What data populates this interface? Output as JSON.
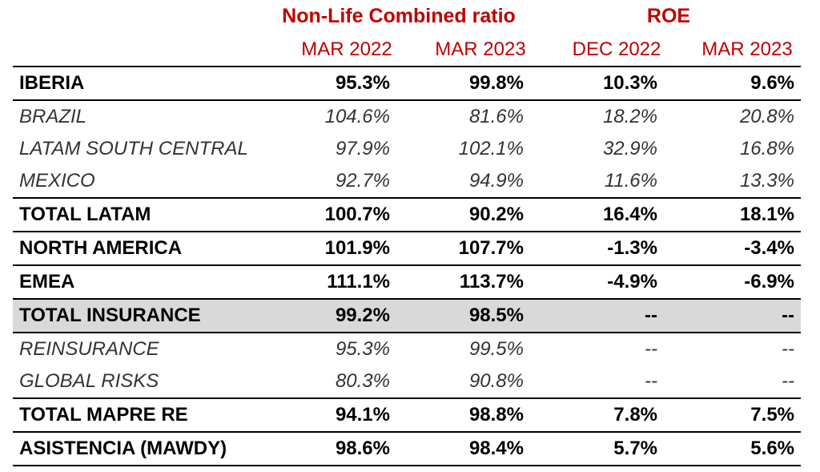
{
  "headers": {
    "group_combined": "Non-Life Combined ratio",
    "group_roe": "ROE",
    "columns": [
      "MAR 2022",
      "MAR 2023",
      "DEC 2022",
      "MAR 2023"
    ]
  },
  "rows": [
    {
      "label": "IBERIA",
      "values": [
        "95.3%",
        "99.8%",
        "10.3%",
        "9.6%"
      ]
    },
    {
      "label": "BRAZIL",
      "values": [
        "104.6%",
        "81.6%",
        "18.2%",
        "20.8%"
      ]
    },
    {
      "label": "LATAM SOUTH CENTRAL",
      "values": [
        "97.9%",
        "102.1%",
        "32.9%",
        "16.8%"
      ]
    },
    {
      "label": "MEXICO",
      "values": [
        "92.7%",
        "94.9%",
        "11.6%",
        "13.3%"
      ]
    },
    {
      "label": "TOTAL LATAM",
      "values": [
        "100.7%",
        "90.2%",
        "16.4%",
        "18.1%"
      ]
    },
    {
      "label": "NORTH AMERICA",
      "values": [
        "101.9%",
        "107.7%",
        "-1.3%",
        "-3.4%"
      ]
    },
    {
      "label": "EMEA",
      "values": [
        "111.1%",
        "113.7%",
        "-4.9%",
        "-6.9%"
      ]
    },
    {
      "label": "TOTAL INSURANCE",
      "values": [
        "99.2%",
        "98.5%",
        "--",
        "--"
      ]
    },
    {
      "label": "REINSURANCE",
      "values": [
        "95.3%",
        "99.5%",
        "--",
        "--"
      ]
    },
    {
      "label": "GLOBAL RISKS",
      "values": [
        "80.3%",
        "90.8%",
        "--",
        "--"
      ]
    },
    {
      "label": "TOTAL MAPRE RE",
      "values": [
        "94.1%",
        "98.8%",
        "7.8%",
        "7.5%"
      ]
    },
    {
      "label": "ASISTENCIA (MAWDY)",
      "values": [
        "98.6%",
        "98.4%",
        "5.7%",
        "5.6%"
      ]
    }
  ],
  "colors": {
    "header_accent": "#c00000",
    "shaded_row": "#d9d9d9"
  }
}
